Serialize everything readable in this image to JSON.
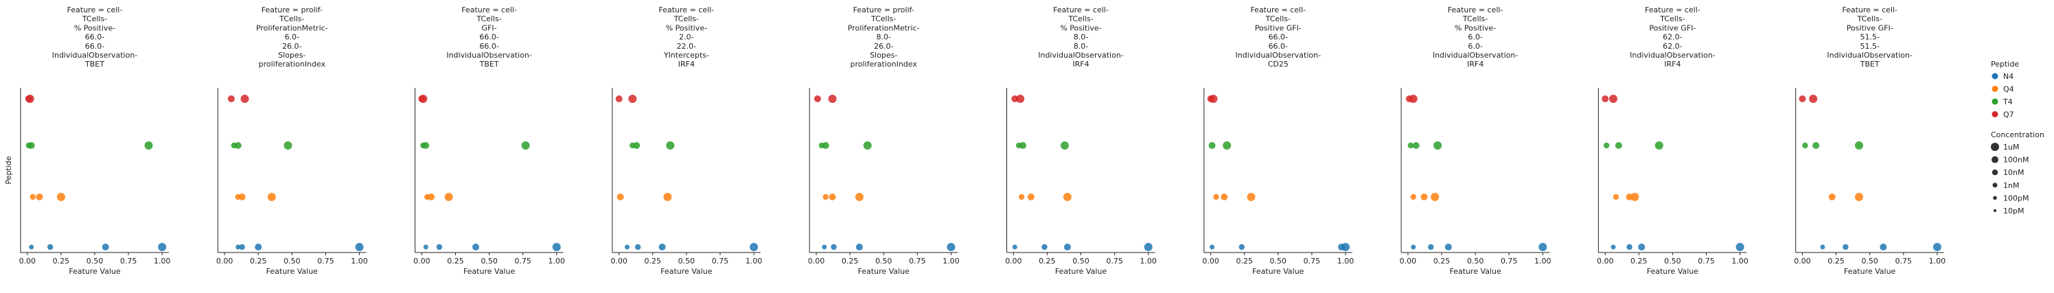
{
  "chart_data": {
    "type": "scatter",
    "xlabel": "Feature Value",
    "ylabel": "Peptide",
    "xlim": [
      -0.05,
      1.05
    ],
    "xticks": [
      "0.00",
      "0.25",
      "0.50",
      "0.75",
      "1.00"
    ],
    "grid": false,
    "legend": {
      "placement": "right",
      "hue_title": "Peptide",
      "size_title": "Concentration",
      "peptides": [
        {
          "name": "N4",
          "color": "#1f77b4"
        },
        {
          "name": "Q4",
          "color": "#ff7f0e"
        },
        {
          "name": "T4",
          "color": "#2ca02c"
        },
        {
          "name": "Q7",
          "color": "#d62728"
        }
      ],
      "concentrations": [
        "1uM",
        "100nM",
        "10nM",
        "1nM",
        "100pM",
        "10pM"
      ]
    },
    "panels": [
      {
        "title": [
          "Feature = cell-",
          "TCells-",
          "% Positive-",
          "66.0-",
          "66.0-",
          "IndividualObservation-",
          "TBET"
        ],
        "series": {
          "N4": [
            1.0,
            0.58,
            0.17,
            0.03
          ],
          "Q4": [
            0.25,
            0.09,
            0.04
          ],
          "T4": [
            0.9,
            0.03,
            0.01
          ],
          "Q7": [
            0.02,
            0.01
          ]
        }
      },
      {
        "title": [
          "Feature = prolif-",
          "TCells-",
          "ProliferationMetric-",
          "6.0-",
          "26.0-",
          "Slopes-",
          "proliferationIndex"
        ],
        "series": {
          "N4": [
            1.0,
            0.25,
            0.13,
            0.1
          ],
          "Q4": [
            0.35,
            0.13,
            0.1
          ],
          "T4": [
            0.47,
            0.1,
            0.07
          ],
          "Q7": [
            0.15,
            0.05
          ]
        }
      },
      {
        "title": [
          "Feature = cell-",
          "TCells-",
          "GFI-",
          "66.0-",
          "66.0-",
          "IndividualObservation-",
          "TBET"
        ],
        "series": {
          "N4": [
            1.0,
            0.4,
            0.13,
            0.03
          ],
          "Q4": [
            0.2,
            0.07,
            0.04
          ],
          "T4": [
            0.77,
            0.03,
            0.01
          ],
          "Q7": [
            0.01,
            0.0
          ]
        }
      },
      {
        "title": [
          "Feature = cell-",
          "TCells-",
          "% Positive-",
          "2.0-",
          "22.0-",
          "YIntercepts-",
          "IRF4"
        ],
        "series": {
          "N4": [
            1.0,
            0.32,
            0.14,
            0.06
          ],
          "Q4": [
            0.36,
            0.01
          ],
          "T4": [
            0.38,
            0.13,
            0.1
          ],
          "Q7": [
            0.1,
            0.0
          ]
        }
      },
      {
        "title": [
          "Feature = prolif-",
          "TCells-",
          "ProliferationMetric-",
          "8.0-",
          "26.0-",
          "Slopes-",
          "proliferationIndex"
        ],
        "series": {
          "N4": [
            1.0,
            0.32,
            0.13,
            0.06
          ],
          "Q4": [
            0.32,
            0.12,
            0.07
          ],
          "T4": [
            0.38,
            0.07,
            0.04
          ],
          "Q7": [
            0.12,
            0.01
          ]
        }
      },
      {
        "title": [
          "Feature = cell-",
          "TCells-",
          "% Positive-",
          "8.0-",
          "8.0-",
          "IndividualObservation-",
          "IRF4"
        ],
        "series": {
          "N4": [
            1.0,
            0.4,
            0.23,
            0.01
          ],
          "Q4": [
            0.4,
            0.13,
            0.06
          ],
          "T4": [
            0.38,
            0.07,
            0.04
          ],
          "Q7": [
            0.05,
            0.01
          ]
        }
      },
      {
        "title": [
          "Feature = cell-",
          "TCells-",
          "Positive GFI-",
          "66.0-",
          "66.0-",
          "IndividualObservation-",
          "CD25"
        ],
        "series": {
          "N4": [
            1.0,
            0.97,
            0.23,
            0.01
          ],
          "Q4": [
            0.3,
            0.1,
            0.04
          ],
          "T4": [
            0.12,
            0.01
          ],
          "Q7": [
            0.02,
            0.0
          ]
        }
      },
      {
        "title": [
          "Feature = cell-",
          "TCells-",
          "% Positive-",
          "6.0-",
          "6.0-",
          "IndividualObservation-",
          "IRF4"
        ],
        "series": {
          "N4": [
            1.0,
            0.3,
            0.17,
            0.04
          ],
          "Q4": [
            0.2,
            0.12,
            0.04
          ],
          "T4": [
            0.22,
            0.06,
            0.02
          ],
          "Q7": [
            0.04,
            0.01
          ]
        }
      },
      {
        "title": [
          "Feature = cell-",
          "TCells-",
          "Positive GFI-",
          "62.0-",
          "62.0-",
          "IndividualObservation-",
          "IRF4"
        ],
        "series": {
          "N4": [
            1.0,
            0.27,
            0.18,
            0.06
          ],
          "Q4": [
            0.22,
            0.18,
            0.08
          ],
          "T4": [
            0.4,
            0.1,
            0.01
          ],
          "Q7": [
            0.06,
            0.0
          ]
        }
      },
      {
        "title": [
          "Feature = cell-",
          "TCells-",
          "Positive GFI-",
          "51.5-",
          "51.5-",
          "IndividualObservation-",
          "TBET"
        ],
        "series": {
          "N4": [
            1.0,
            0.6,
            0.32,
            0.15
          ],
          "Q4": [
            0.42,
            0.22
          ],
          "T4": [
            0.42,
            0.1,
            0.02
          ],
          "Q7": [
            0.08,
            0.0
          ]
        }
      }
    ]
  }
}
